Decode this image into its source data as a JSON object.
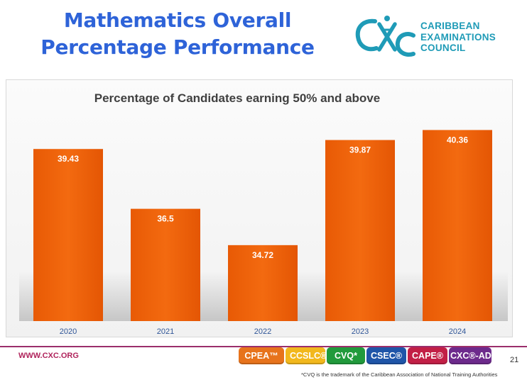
{
  "slide": {
    "title_line1": "Mathematics Overall",
    "title_line2": "Percentage Performance",
    "page_number": "21"
  },
  "logo": {
    "line1": "CARIBBEAN",
    "line2": "EXAMINATIONS",
    "line3": "COUNCIL",
    "icon": "cxc-logo-icon"
  },
  "footer": {
    "url": "WWW.CXC.ORG",
    "footnote": "*CVQ is the trademark of the Caribbean Association of National Training Authorities",
    "badges": [
      {
        "label": "CPEA™",
        "color": "#e7731c"
      },
      {
        "label": "CCSLC®",
        "color": "#f2b81d"
      },
      {
        "label": "CVQ*",
        "color": "#219a3c"
      },
      {
        "label": "CSEC®",
        "color": "#1f55a8"
      },
      {
        "label": "CAPE®",
        "color": "#c21f46"
      },
      {
        "label": "CXC®-AD",
        "color": "#6d2a8c"
      }
    ]
  },
  "colors": {
    "title": "#2e63d8",
    "bar": "#ed5f07",
    "bar_label": "#ffffff",
    "chart_title": "#404040",
    "axis_label": "#2f5597"
  },
  "chart_data": {
    "type": "bar",
    "title": "Percentage of Candidates earning 50% and above",
    "categories": [
      "2020",
      "2021",
      "2022",
      "2023",
      "2024"
    ],
    "series": [
      {
        "values": [
          39.43,
          36.5,
          34.72,
          39.87,
          40.36
        ]
      }
    ],
    "value_labels": [
      "39.43",
      "36.5",
      "34.72",
      "39.87",
      "40.36"
    ],
    "ylim": [
      31,
      41
    ],
    "xlabel": "",
    "ylabel": "",
    "grid": false,
    "legend": "none",
    "data_labels": "inside-top"
  }
}
